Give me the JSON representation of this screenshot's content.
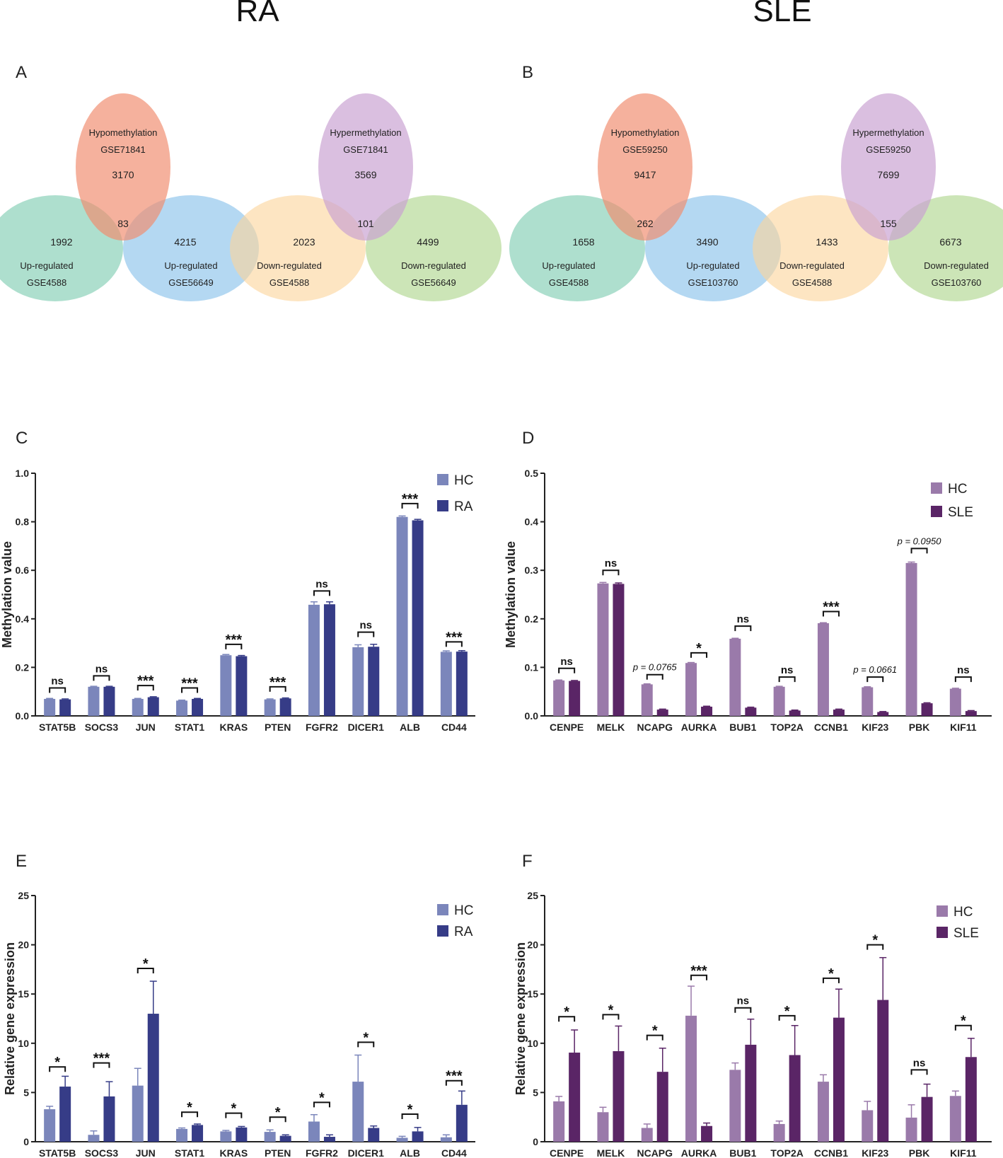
{
  "headers": {
    "left": "RA",
    "right": "SLE"
  },
  "venn_panels": [
    {
      "panel_label": "A",
      "diagrams": [
        {
          "top": {
            "lines": [
              "Hypomethylation",
              "GSE71841"
            ],
            "count": "3170",
            "color": "#f08c6e"
          },
          "left": {
            "lines": [
              "Up-regulated",
              "GSE4588"
            ],
            "count": "1992",
            "color": "#7ccbb0"
          },
          "right": {
            "lines": [
              "Up-regulated",
              "GSE56649"
            ],
            "count": "4215",
            "color": "#86c0ea"
          },
          "center": "83"
        },
        {
          "top": {
            "lines": [
              "Hypermethylation",
              "GSE71841"
            ],
            "count": "3569",
            "color": "#c9a1d1"
          },
          "left": {
            "lines": [
              "Down-regulated",
              "GSE4588"
            ],
            "count": "2023",
            "color": "#fbd59c"
          },
          "right": {
            "lines": [
              "Down-regulated",
              "GSE56649"
            ],
            "count": "4499",
            "color": "#add58a"
          },
          "center": "101"
        }
      ]
    },
    {
      "panel_label": "B",
      "diagrams": [
        {
          "top": {
            "lines": [
              "Hypomethylation",
              "GSE59250"
            ],
            "count": "9417",
            "color": "#f08c6e"
          },
          "left": {
            "lines": [
              "Up-regulated",
              "GSE4588"
            ],
            "count": "1658",
            "color": "#7ccbb0"
          },
          "right": {
            "lines": [
              "Up-regulated",
              "GSE103760"
            ],
            "count": "3490",
            "color": "#86c0ea"
          },
          "center": "262"
        },
        {
          "top": {
            "lines": [
              "Hypermethylation",
              "GSE59250"
            ],
            "count": "7699",
            "color": "#c9a1d1"
          },
          "left": {
            "lines": [
              "Down-regulated",
              "GSE4588"
            ],
            "count": "1433",
            "color": "#fbd59c"
          },
          "right": {
            "lines": [
              "Down-regulated",
              "GSE103760"
            ],
            "count": "6673",
            "color": "#add58a"
          },
          "center": "155"
        }
      ]
    }
  ],
  "chart_data": [
    {
      "panel_label": "C",
      "type": "bar",
      "ylabel": "Methylation value",
      "ylim": [
        0,
        1.0
      ],
      "yticks": [
        "0.0",
        "0.2",
        "0.4",
        "0.6",
        "0.8",
        "1.0"
      ],
      "categories": [
        "STAT5B",
        "SOCS3",
        "JUN",
        "STAT1",
        "KRAS",
        "PTEN",
        "FGFR2",
        "DICER1",
        "ALB",
        "CD44"
      ],
      "series": [
        {
          "name": "HC",
          "color": "#7b86bb",
          "values": [
            0.07,
            0.12,
            0.07,
            0.063,
            0.25,
            0.068,
            0.458,
            0.283,
            0.82,
            0.264
          ],
          "errors": [
            0.002,
            0.002,
            0.002,
            0.002,
            0.003,
            0.002,
            0.012,
            0.01,
            0.004,
            0.004
          ]
        },
        {
          "name": "RA",
          "color": "#363c87",
          "values": [
            0.068,
            0.12,
            0.077,
            0.07,
            0.246,
            0.072,
            0.46,
            0.285,
            0.806,
            0.265
          ],
          "errors": [
            0.002,
            0.002,
            0.002,
            0.002,
            0.003,
            0.002,
            0.01,
            0.01,
            0.004,
            0.004
          ]
        }
      ],
      "significance": [
        "ns",
        "ns",
        "***",
        "***",
        "***",
        "***",
        "ns",
        "ns",
        "***",
        "***"
      ],
      "sig_levels": [
        0.115,
        0.165,
        0.125,
        0.115,
        0.295,
        0.12,
        0.515,
        0.345,
        0.875,
        0.305
      ]
    },
    {
      "panel_label": "D",
      "type": "bar",
      "ylabel": "Methylation value",
      "ylim": [
        0,
        0.5
      ],
      "yticks": [
        "0.0",
        "0.1",
        "0.2",
        "0.3",
        "0.4",
        "0.5"
      ],
      "categories": [
        "CENPE",
        "MELK",
        "NCAPG",
        "AURKA",
        "BUB1",
        "TOP2A",
        "CCNB1",
        "KIF23",
        "PBK",
        "KIF11"
      ],
      "series": [
        {
          "name": "HC",
          "color": "#9a7aaa",
          "values": [
            0.073,
            0.273,
            0.065,
            0.109,
            0.159,
            0.06,
            0.191,
            0.059,
            0.315,
            0.056
          ],
          "errors": [
            0.001,
            0.002,
            0.001,
            0.001,
            0.001,
            0.001,
            0.001,
            0.001,
            0.002,
            0.001
          ]
        },
        {
          "name": "SLE",
          "color": "#5a2566",
          "values": [
            0.072,
            0.272,
            0.013,
            0.019,
            0.017,
            0.011,
            0.013,
            0.008,
            0.026,
            0.01
          ],
          "errors": [
            0.001,
            0.002,
            0.001,
            0.001,
            0.001,
            0.001,
            0.001,
            0.001,
            0.001,
            0.001
          ]
        }
      ],
      "significance": [
        "ns",
        "ns",
        "p = 0.0765",
        "*",
        "ns",
        "ns",
        "***",
        "p = 0.0661",
        "p = 0.0950",
        "ns"
      ],
      "sig_levels": [
        0.098,
        0.3,
        0.085,
        0.13,
        0.185,
        0.08,
        0.215,
        0.08,
        0.345,
        0.08
      ]
    },
    {
      "panel_label": "E",
      "type": "bar",
      "ylabel": "Relative gene expression",
      "ylim": [
        0,
        25
      ],
      "yticks": [
        "0",
        "5",
        "10",
        "15",
        "20",
        "25"
      ],
      "categories": [
        "STAT5B",
        "SOCS3",
        "JUN",
        "STAT1",
        "KRAS",
        "PTEN",
        "FGFR2",
        "DICER1",
        "ALB",
        "CD44"
      ],
      "series": [
        {
          "name": "HC",
          "color": "#7b86bb",
          "values": [
            3.3,
            0.7,
            5.7,
            1.3,
            1.05,
            1.0,
            2.05,
            6.1,
            0.4,
            0.45
          ],
          "errors": [
            0.3,
            0.4,
            1.75,
            0.1,
            0.1,
            0.2,
            0.7,
            2.7,
            0.15,
            0.25
          ]
        },
        {
          "name": "RA",
          "color": "#363c87",
          "values": [
            5.6,
            4.6,
            13.0,
            1.7,
            1.45,
            0.6,
            0.5,
            1.4,
            1.05,
            3.75
          ],
          "errors": [
            1.05,
            1.5,
            3.3,
            0.1,
            0.1,
            0.1,
            0.2,
            0.2,
            0.4,
            1.4
          ]
        }
      ],
      "significance": [
        "*",
        "***",
        "*",
        "*",
        "*",
        "*",
        "*",
        "*",
        "*",
        "***"
      ],
      "sig_levels": [
        7.6,
        8.0,
        17.6,
        3.0,
        2.9,
        2.5,
        4.0,
        10.1,
        2.8,
        6.2
      ]
    },
    {
      "panel_label": "F",
      "type": "bar",
      "ylabel": "Relative gene expression",
      "ylim": [
        0,
        25
      ],
      "yticks": [
        "0",
        "5",
        "10",
        "15",
        "20",
        "25"
      ],
      "categories": [
        "CENPE",
        "MELK",
        "NCAPG",
        "AURKA",
        "BUB1",
        "TOP2A",
        "CCNB1",
        "KIF23",
        "PBK",
        "KIF11"
      ],
      "series": [
        {
          "name": "HC",
          "color": "#9a7aaa",
          "values": [
            4.1,
            3.0,
            1.4,
            12.8,
            7.3,
            1.8,
            6.1,
            3.2,
            2.45,
            4.65
          ],
          "errors": [
            0.5,
            0.5,
            0.4,
            3.0,
            0.7,
            0.3,
            0.7,
            0.9,
            1.3,
            0.5
          ]
        },
        {
          "name": "SLE",
          "color": "#5a2566",
          "values": [
            9.05,
            9.2,
            7.1,
            1.6,
            9.85,
            8.8,
            12.6,
            14.4,
            4.55,
            8.6
          ],
          "errors": [
            2.3,
            2.55,
            2.4,
            0.3,
            2.6,
            3.0,
            2.9,
            4.3,
            1.3,
            1.9
          ]
        }
      ],
      "significance": [
        "*",
        "*",
        "*",
        "***",
        "ns",
        "*",
        "*",
        "*",
        "ns",
        "*"
      ],
      "sig_levels": [
        12.7,
        12.9,
        10.8,
        16.9,
        13.6,
        12.8,
        16.6,
        20.0,
        7.3,
        11.8
      ]
    }
  ]
}
